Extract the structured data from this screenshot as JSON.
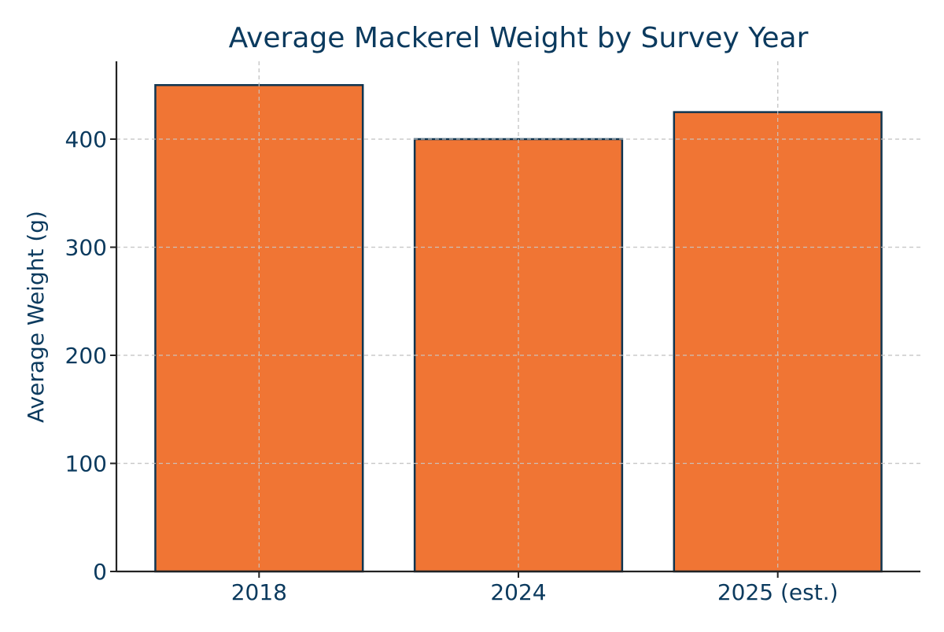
{
  "chart_data": {
    "type": "bar",
    "title": "Average Mackerel Weight by Survey Year",
    "xlabel": "",
    "ylabel": "Average Weight (g)",
    "categories": [
      "2018",
      "2024",
      "2025 (est.)"
    ],
    "values": [
      450,
      400,
      425
    ],
    "ylim": [
      0,
      472
    ],
    "yticks": [
      0,
      100,
      200,
      300,
      400
    ],
    "grid": true,
    "legend": "none",
    "colors": {
      "bar_fill": "#f07534",
      "bar_edge": "#0f3550",
      "text": "#0b3a5e",
      "grid": "#c8c8c8",
      "axis": "#222222"
    }
  }
}
